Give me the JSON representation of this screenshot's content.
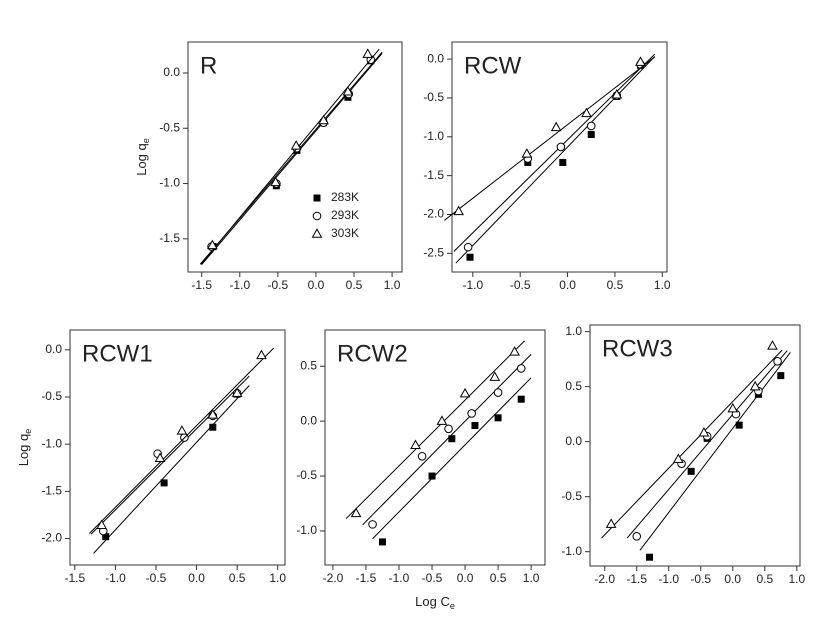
{
  "chart_data": [
    {
      "type": "scatter",
      "title": "R",
      "y_label": "Log q",
      "y_label_sub": "e",
      "legend": "lower right",
      "xlim": [
        -1.68,
        1.13
      ],
      "ylim": [
        -1.8,
        0.28
      ],
      "xticks": [
        -1.5,
        {
          "value": -1,
          "label": "-1.0"
        },
        -0.5,
        {
          "value": 0,
          "label": "0.0"
        },
        0.5,
        {
          "value": 1,
          "label": "1.0"
        }
      ],
      "yticks": [
        {
          "value": 0,
          "label": "0.0"
        },
        -0.5,
        {
          "value": -1,
          "label": "-1.0"
        },
        -1.5
      ],
      "series": [
        {
          "name": "283K",
          "color": "#000",
          "marker": "square",
          "x": [
            -1.35,
            -0.52,
            -0.25,
            0.1,
            0.42,
            0.72
          ],
          "values": [
            -1.57,
            -1.02,
            -0.7,
            -0.45,
            -0.22,
            0.11
          ]
        },
        {
          "name": "293K",
          "color": "#000",
          "marker": "circle",
          "x": [
            -1.37,
            -0.52,
            -0.25,
            0.1,
            0.43,
            0.72
          ],
          "values": [
            -1.57,
            -1.0,
            -0.68,
            -0.45,
            -0.19,
            0.12
          ]
        },
        {
          "name": "303K",
          "color": "#000",
          "marker": "triangle",
          "x": [
            -1.36,
            -0.53,
            -0.26,
            0.1,
            0.42,
            0.68
          ],
          "values": [
            -1.56,
            -0.99,
            -0.66,
            -0.43,
            -0.17,
            0.17
          ]
        }
      ]
    },
    {
      "type": "scatter",
      "title": "RCW",
      "xlim": [
        -1.22,
        1.05
      ],
      "ylim": [
        -2.74,
        0.22
      ],
      "xticks": [
        {
          "value": -1,
          "label": "-1.0"
        },
        -0.5,
        {
          "value": 0,
          "label": "0.0"
        },
        0.5,
        {
          "value": 1,
          "label": "1.0"
        }
      ],
      "yticks": [
        {
          "value": 0,
          "label": "0.0"
        },
        -0.5,
        {
          "value": -1,
          "label": "-1.0"
        },
        -1.5,
        {
          "value": -2,
          "label": "-2.0"
        },
        -2.5
      ],
      "series": [
        {
          "color": "#000",
          "marker": "square",
          "x": [
            -1.03,
            -0.42,
            -0.05,
            0.25,
            0.52,
            0.77
          ],
          "values": [
            -2.55,
            -1.33,
            -1.33,
            -0.97,
            -0.48,
            -0.08
          ]
        },
        {
          "color": "#000",
          "marker": "circle",
          "x": [
            -1.05,
            -0.42,
            -0.07,
            0.25,
            0.52,
            0.77
          ],
          "values": [
            -2.42,
            -1.28,
            -1.13,
            -0.86,
            -0.47,
            -0.07
          ]
        },
        {
          "color": "#000",
          "marker": "triangle",
          "x": [
            -1.15,
            -0.43,
            -0.12,
            0.2,
            0.52,
            0.77
          ],
          "values": [
            -1.96,
            -1.22,
            -0.88,
            -0.7,
            -0.46,
            -0.04
          ]
        }
      ]
    },
    {
      "type": "scatter",
      "title": "RCW1",
      "y_label": "Log q",
      "y_label_sub": "e",
      "xlim": [
        -1.56,
        1.09
      ],
      "ylim": [
        -2.28,
        0.21
      ],
      "xticks": [
        -1.5,
        {
          "value": -1,
          "label": "-1.0"
        },
        -0.5,
        {
          "value": 0,
          "label": "0.0"
        },
        0.5,
        {
          "value": 1,
          "label": "1.0"
        }
      ],
      "yticks": [
        {
          "value": 0,
          "label": "0.0"
        },
        -0.5,
        {
          "value": -1,
          "label": "-1.0"
        },
        -1.5,
        {
          "value": -2,
          "label": "-2.0"
        }
      ],
      "series": [
        {
          "color": "#000",
          "marker": "square",
          "x": [
            -1.12,
            -0.4,
            0.2,
            0.5
          ],
          "values": [
            -1.98,
            -1.41,
            -0.82,
            -0.47
          ]
        },
        {
          "color": "#000",
          "marker": "circle",
          "x": [
            -1.15,
            -0.48,
            -0.15,
            0.2,
            0.5
          ],
          "values": [
            -1.92,
            -1.1,
            -0.93,
            -0.7,
            -0.46
          ]
        },
        {
          "color": "#000",
          "marker": "triangle",
          "x": [
            -1.17,
            -0.45,
            -0.18,
            0.2,
            0.5,
            0.8
          ],
          "values": [
            -1.86,
            -1.15,
            -0.86,
            -0.69,
            -0.46,
            -0.06
          ]
        }
      ]
    },
    {
      "type": "scatter",
      "title": "RCW2",
      "x_label": "Log C",
      "x_label_sub": "e",
      "xlim": [
        -2.12,
        1.21
      ],
      "ylim": [
        -1.31,
        0.83
      ],
      "xticks": [
        {
          "value": -2,
          "label": "-2.0"
        },
        -1.5,
        {
          "value": -1,
          "label": "-1.0"
        },
        -0.5,
        {
          "value": 0,
          "label": "0.0"
        },
        0.5,
        {
          "value": 1,
          "label": "1.0"
        }
      ],
      "yticks": [
        0.5,
        {
          "value": 0,
          "label": "0.0"
        },
        -0.5,
        {
          "value": -1,
          "label": "-1.0"
        }
      ],
      "series": [
        {
          "color": "#000",
          "marker": "square",
          "x": [
            -1.25,
            -0.5,
            -0.2,
            0.15,
            0.5,
            0.85
          ],
          "values": [
            -1.1,
            -0.5,
            -0.16,
            -0.04,
            0.03,
            0.2
          ]
        },
        {
          "color": "#000",
          "marker": "circle",
          "x": [
            -1.4,
            -0.65,
            -0.25,
            0.1,
            0.5,
            0.85
          ],
          "values": [
            -0.94,
            -0.32,
            -0.07,
            0.07,
            0.26,
            0.48
          ]
        },
        {
          "color": "#000",
          "marker": "triangle",
          "x": [
            -1.65,
            -0.75,
            -0.35,
            0.0,
            0.45,
            0.75
          ],
          "values": [
            -0.84,
            -0.22,
            0.0,
            0.25,
            0.4,
            0.63
          ]
        }
      ]
    },
    {
      "type": "scatter",
      "title": "RCW3",
      "xlim": [
        -2.23,
        1.05
      ],
      "ylim": [
        -1.13,
        1.06
      ],
      "xticks": [
        {
          "value": -2,
          "label": "-2.0"
        },
        -1.5,
        {
          "value": -1,
          "label": "-1.0"
        },
        -0.5,
        {
          "value": 0,
          "label": "0.0"
        },
        0.5,
        {
          "value": 1,
          "label": "1.0"
        }
      ],
      "yticks": [
        {
          "value": 1,
          "label": "1.0"
        },
        0.5,
        {
          "value": 0,
          "label": "0.0"
        },
        -0.5,
        {
          "value": -1,
          "label": "-1.0"
        }
      ],
      "series": [
        {
          "color": "#000",
          "marker": "square",
          "x": [
            -1.3,
            -0.65,
            -0.4,
            0.1,
            0.4,
            0.75
          ],
          "values": [
            -1.05,
            -0.27,
            0.03,
            0.15,
            0.43,
            0.6
          ]
        },
        {
          "color": "#000",
          "marker": "circle",
          "x": [
            -1.5,
            -0.8,
            -0.4,
            0.05,
            0.4,
            0.7
          ],
          "values": [
            -0.86,
            -0.2,
            0.05,
            0.25,
            0.46,
            0.73
          ]
        },
        {
          "color": "#000",
          "marker": "triangle",
          "x": [
            -1.9,
            -0.85,
            -0.45,
            0.0,
            0.35,
            0.62
          ],
          "values": [
            -0.75,
            -0.16,
            0.08,
            0.3,
            0.5,
            0.87
          ]
        }
      ]
    }
  ]
}
